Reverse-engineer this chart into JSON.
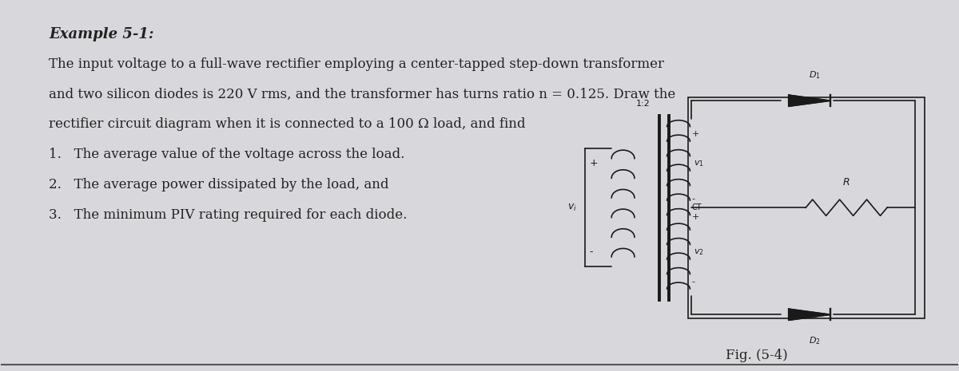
{
  "background_color": "#d8d8dc",
  "title": "Example 5-1:",
  "body_text": [
    "The input voltage to a full-wave rectifier employing a center-tapped step-down transformer",
    "and two silicon diodes is 220 V rms, and the transformer has turns ratio n = 0.125. Draw the",
    "rectifier circuit diagram when it is connected to a 100 Ω load, and find"
  ],
  "list_items": [
    "1.   The average value of the voltage across the load.",
    "2.   The average power dissipated by the load, and",
    "3.   The minimum PIV rating required for each diode."
  ],
  "fig_caption": "Fig. (5-4)",
  "text_color": "#222222",
  "font_size_title": 13,
  "font_size_body": 12
}
